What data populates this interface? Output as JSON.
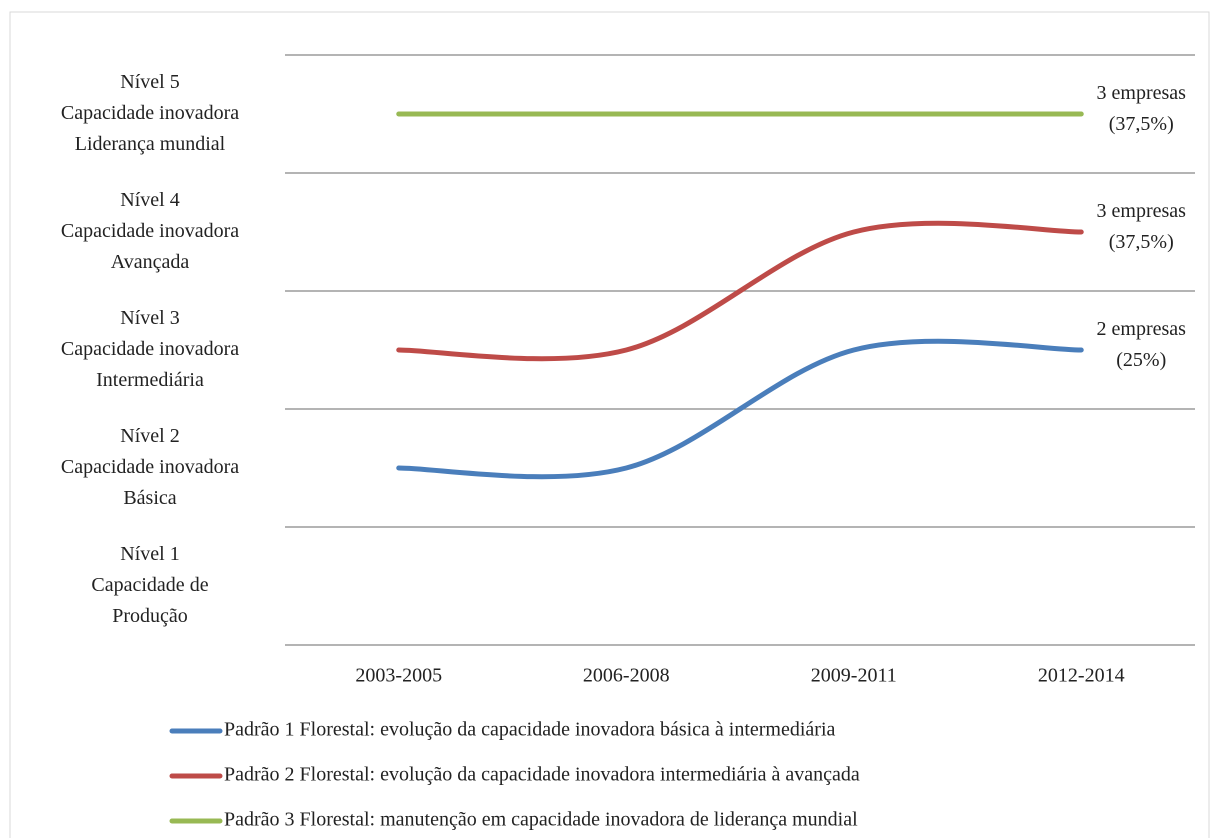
{
  "chart_data": {
    "type": "line",
    "categories": [
      "2003-2005",
      "2006-2008",
      "2009-2011",
      "2012-2014"
    ],
    "series": [
      {
        "name": "Padrão 1 Florestal: evolução da capacidade inovadora básica à intermediária",
        "color": "#4a7ebb",
        "values": [
          2,
          2,
          3,
          3
        ],
        "annotation": [
          "2 empresas",
          "(25%)"
        ]
      },
      {
        "name": "Padrão 2 Florestal: evolução da capacidade inovadora intermediária à avançada",
        "color": "#be4b48",
        "values": [
          3,
          3,
          4,
          4
        ],
        "annotation": [
          "3 empresas",
          "(37,5%)"
        ]
      },
      {
        "name": "Padrão 3 Florestal: manutenção em capacidade inovadora de liderança mundial",
        "color": "#98b954",
        "values": [
          5,
          5,
          5,
          5
        ],
        "annotation": [
          "3 empresas",
          "(37,5%)"
        ]
      }
    ],
    "ylim": [
      0.5,
      5.5
    ],
    "yticks": [
      {
        "value": 1,
        "label": [
          "Nível 1",
          "Capacidade de",
          "Produção"
        ]
      },
      {
        "value": 2,
        "label": [
          "Nível 2",
          "Capacidade inovadora",
          "Básica"
        ]
      },
      {
        "value": 3,
        "label": [
          "Nível 3",
          "Capacidade inovadora",
          "Intermediária"
        ]
      },
      {
        "value": 4,
        "label": [
          "Nível 4",
          "Capacidade inovadora",
          "Avançada"
        ]
      },
      {
        "value": 5,
        "label": [
          "Nível 5",
          "Capacidade inovadora",
          "Liderança mundial"
        ]
      }
    ],
    "ygrid": [
      0.5,
      1.5,
      2.5,
      3.5,
      4.5,
      5.5
    ],
    "smooth": true
  }
}
